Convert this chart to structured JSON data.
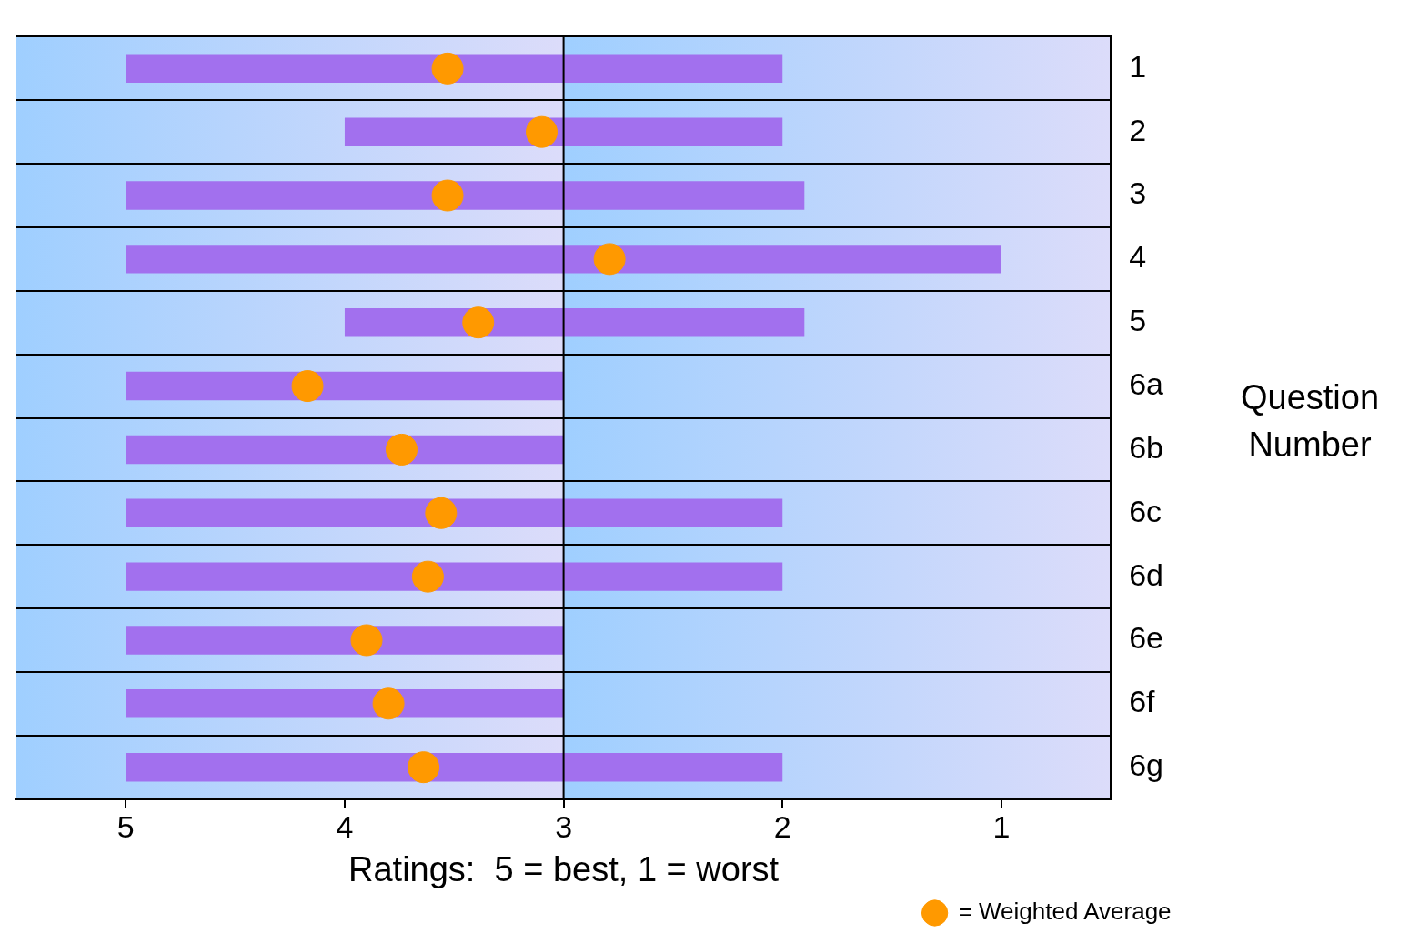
{
  "chart_data": {
    "type": "bar",
    "orientation": "horizontal",
    "xlabel": "Ratings:  5 = best, 1 = worst",
    "ylabel": "Question Number",
    "categories": [
      "1",
      "2",
      "3",
      "4",
      "5",
      "6a",
      "6b",
      "6c",
      "6d",
      "6e",
      "6f",
      "6g"
    ],
    "xlim": [
      5.5,
      0.5
    ],
    "xticks": [
      5,
      4,
      3,
      2,
      1
    ],
    "grid": "y",
    "legend": "bottom right",
    "marker": "circle",
    "ref_lines": [
      {
        "axis": "x",
        "value": 3,
        "color": "#000000"
      }
    ],
    "series": [
      {
        "color": "#a270ee",
        "base": [
          2,
          2,
          1.9,
          1,
          1.9,
          3,
          3,
          2,
          2,
          3,
          3,
          2
        ],
        "values": [
          3,
          2,
          3.1,
          4,
          2.1,
          2,
          2,
          3,
          3,
          2,
          2,
          3
        ]
      },
      {
        "type": "scatter",
        "name": "= Weighted Average",
        "color": "#ff9900",
        "values": [
          3.53,
          3.1,
          3.53,
          2.79,
          3.39,
          4.17,
          3.74,
          3.56,
          3.62,
          3.9,
          3.8,
          3.64
        ]
      }
    ]
  }
}
